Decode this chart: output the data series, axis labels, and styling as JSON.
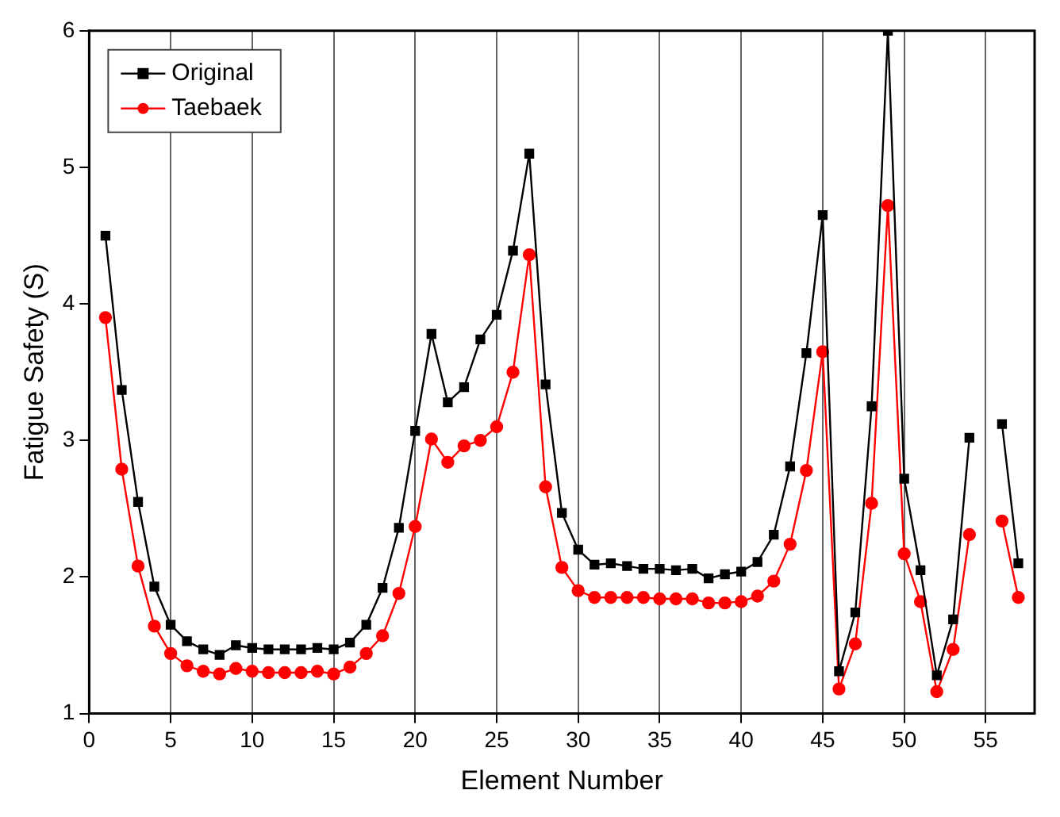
{
  "chart_data": {
    "type": "line",
    "xlabel": "Element Number",
    "ylabel": "Fatigue Safety (S)",
    "x": [
      1,
      2,
      3,
      4,
      5,
      6,
      7,
      8,
      9,
      10,
      11,
      12,
      13,
      14,
      15,
      16,
      17,
      18,
      19,
      20,
      21,
      22,
      23,
      24,
      25,
      26,
      27,
      28,
      29,
      30,
      31,
      32,
      33,
      34,
      35,
      36,
      37,
      38,
      39,
      40,
      41,
      42,
      43,
      44,
      45,
      46,
      47,
      48,
      49,
      50,
      51,
      52,
      53,
      54,
      55,
      56,
      57
    ],
    "series": [
      {
        "name": "Original",
        "color": "#000000",
        "marker": "square",
        "values": [
          4.5,
          3.37,
          2.55,
          1.93,
          1.65,
          1.53,
          1.47,
          1.43,
          1.5,
          1.48,
          1.47,
          1.47,
          1.47,
          1.48,
          1.47,
          1.52,
          1.65,
          1.92,
          2.36,
          3.07,
          3.78,
          3.28,
          3.39,
          3.74,
          3.92,
          4.39,
          5.1,
          3.41,
          2.47,
          2.2,
          2.09,
          2.1,
          2.08,
          2.06,
          2.06,
          2.05,
          2.06,
          1.99,
          2.02,
          2.04,
          2.11,
          2.31,
          2.81,
          3.64,
          4.65,
          1.31,
          1.74,
          3.25,
          6.0,
          2.72,
          2.05,
          1.28,
          1.69,
          3.02,
          null,
          3.12,
          2.1
        ]
      },
      {
        "name": "Taebaek",
        "color": "#ff0000",
        "marker": "circle",
        "values": [
          3.9,
          2.79,
          2.08,
          1.64,
          1.44,
          1.35,
          1.31,
          1.29,
          1.33,
          1.31,
          1.3,
          1.3,
          1.3,
          1.31,
          1.29,
          1.34,
          1.44,
          1.57,
          1.88,
          2.37,
          3.01,
          2.84,
          2.96,
          3.0,
          3.1,
          3.5,
          4.36,
          2.66,
          2.07,
          1.9,
          1.85,
          1.85,
          1.85,
          1.85,
          1.84,
          1.84,
          1.84,
          1.81,
          1.81,
          1.82,
          1.86,
          1.97,
          2.24,
          2.78,
          3.65,
          1.18,
          1.51,
          2.54,
          4.72,
          2.17,
          1.82,
          1.16,
          1.47,
          2.31,
          null,
          2.41,
          1.85
        ]
      }
    ],
    "xlim": [
      0,
      58
    ],
    "xticks": [
      0,
      5,
      10,
      15,
      20,
      25,
      30,
      35,
      40,
      45,
      50,
      55
    ],
    "ylim": [
      1,
      6
    ],
    "yticks": [
      1,
      2,
      3,
      4,
      5,
      6
    ],
    "grid": "x",
    "legend": "top left"
  }
}
